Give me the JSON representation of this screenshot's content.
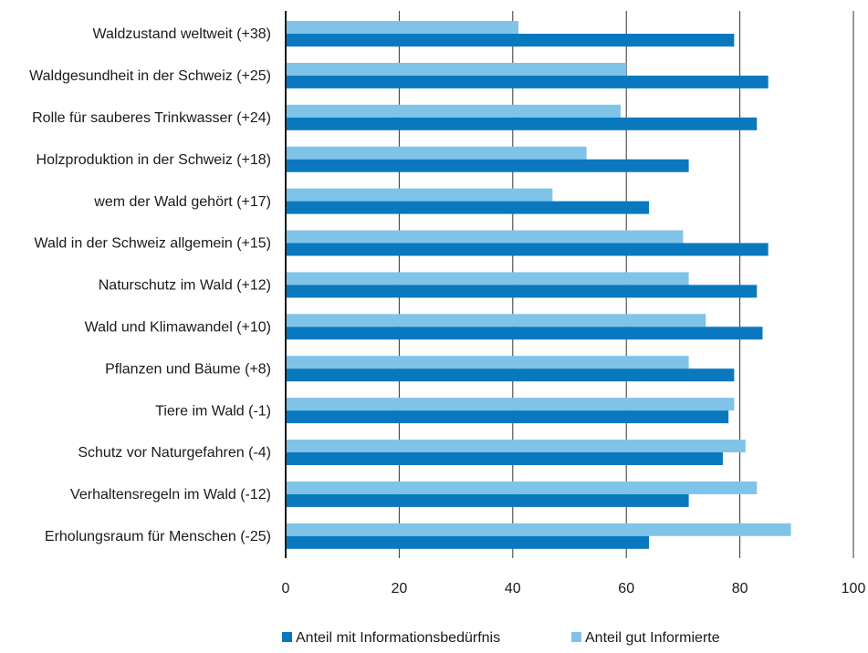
{
  "chart_data": {
    "type": "bar",
    "orientation": "horizontal",
    "title": "",
    "xlabel": "",
    "ylabel": "",
    "xlim": [
      0,
      100
    ],
    "x_ticks": [
      0,
      20,
      40,
      60,
      80,
      100
    ],
    "grid": "vertical",
    "legend_position": "bottom-center",
    "categories": [
      "Waldzustand weltweit (+38)",
      "Waldgesundheit in der Schweiz (+25)",
      "Rolle für sauberes Trinkwasser (+24)",
      "Holzproduktion in der Schweiz (+18)",
      "wem der Wald gehört (+17)",
      "Wald in der Schweiz allgemein (+15)",
      "Naturschutz im Wald (+12)",
      "Wald und Klimawandel (+10)",
      "Pflanzen und Bäume (+8)",
      "Tiere im Wald (-1)",
      "Schutz vor Naturgefahren (-4)",
      "Verhaltensregeln im Wald (-12)",
      "Erholungsraum für Menschen (-25)"
    ],
    "series": [
      {
        "name": "Anteil gut Informierte",
        "color": "#7fc4e8",
        "values": [
          41,
          60,
          59,
          53,
          47,
          70,
          71,
          74,
          71,
          79,
          81,
          83,
          89
        ]
      },
      {
        "name": "Anteil mit Informationsbedürfnis",
        "color": "#0a78bf",
        "values": [
          79,
          85,
          83,
          71,
          64,
          85,
          83,
          84,
          79,
          78,
          77,
          71,
          64
        ]
      }
    ],
    "legend_order": [
      "Anteil mit Informationsbedürfnis",
      "Anteil gut Informierte"
    ]
  }
}
